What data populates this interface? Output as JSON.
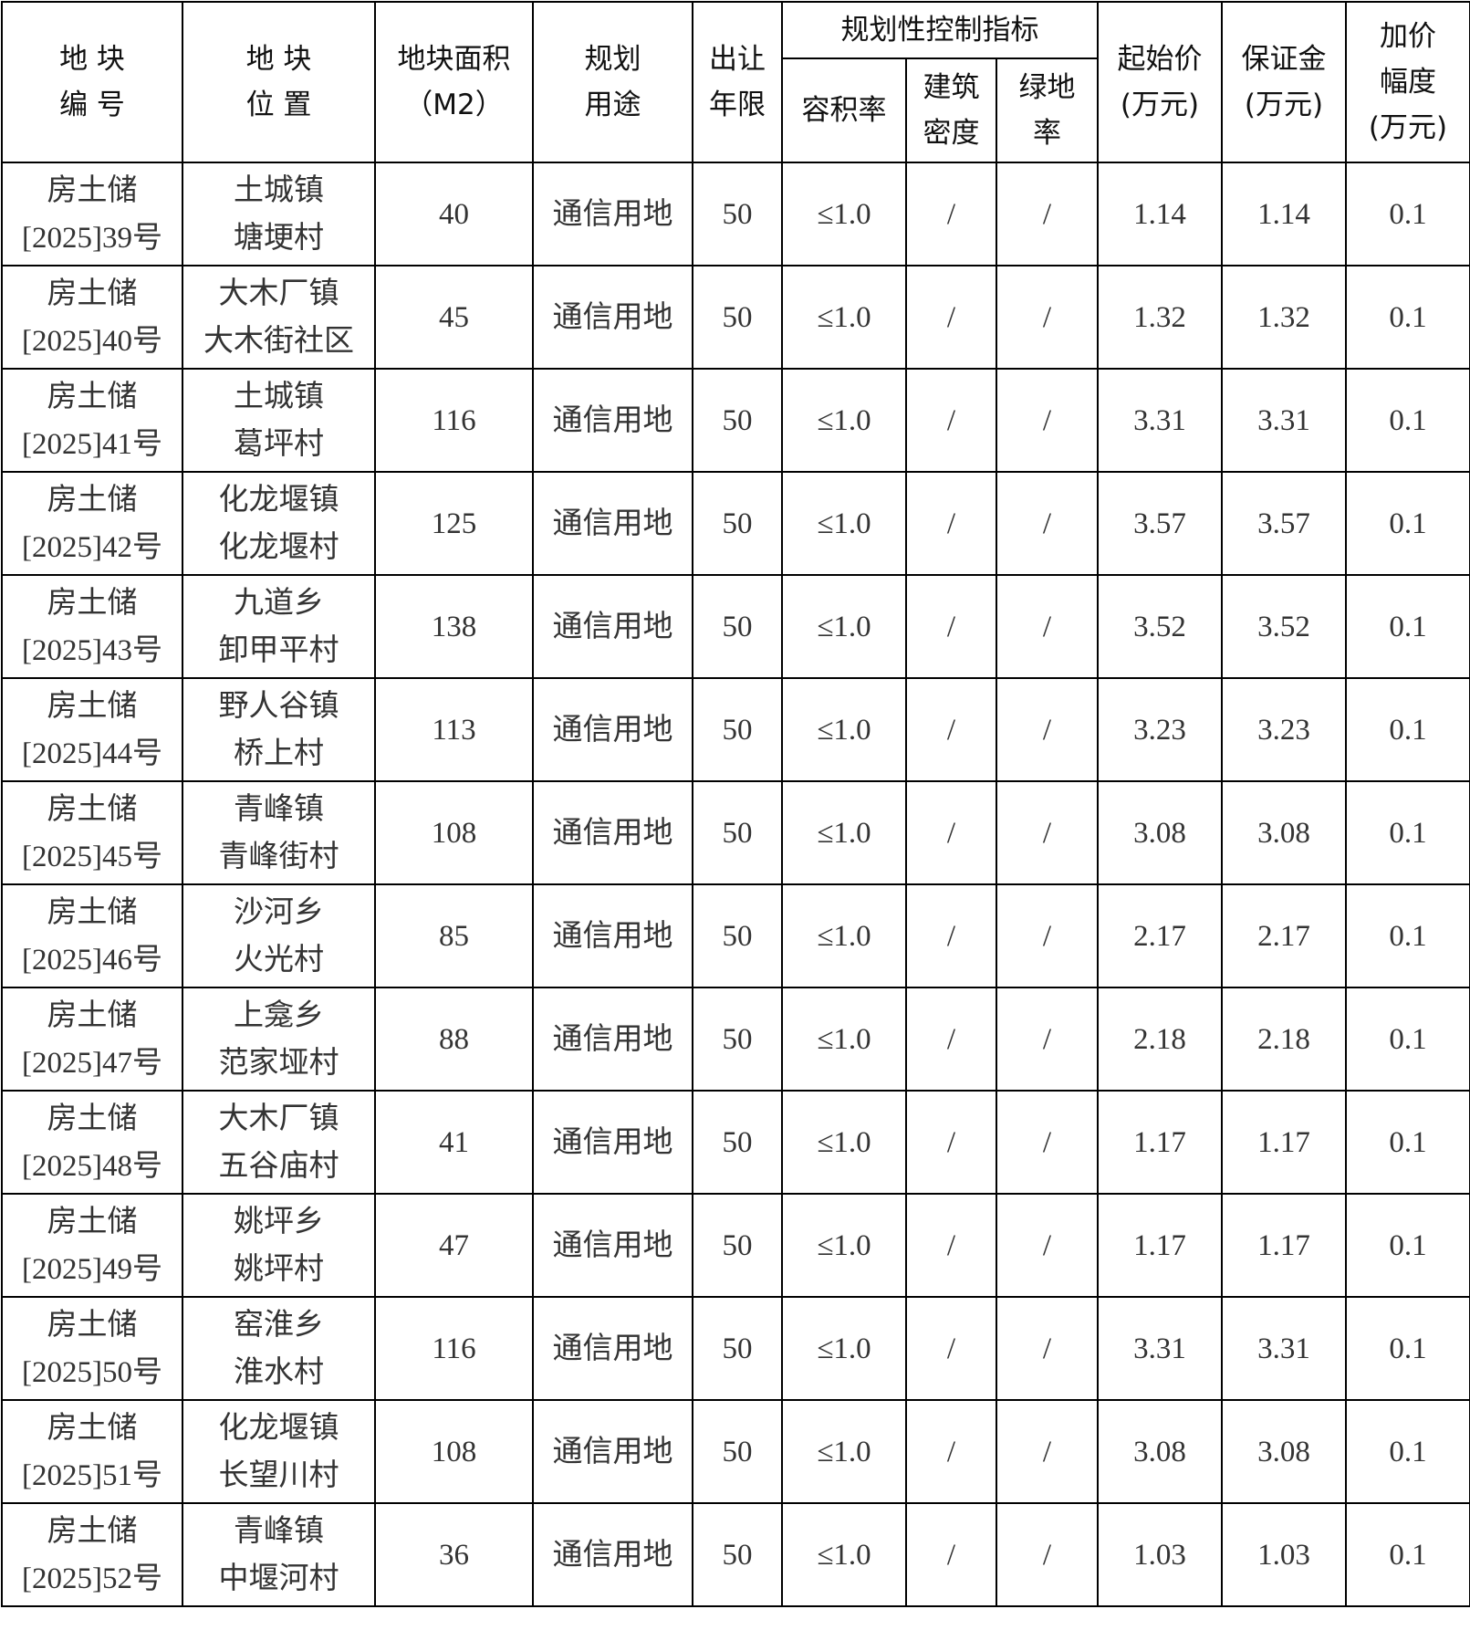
{
  "headers": {
    "plot_no": [
      "地 块",
      "编 号"
    ],
    "location": [
      "地 块",
      "位 置"
    ],
    "area": [
      "地块面积",
      "（M2）"
    ],
    "use": [
      "规划",
      "用途"
    ],
    "term": [
      "出让",
      "年限"
    ],
    "control_group": "规划性控制指标",
    "far": "容积率",
    "density": [
      "建筑",
      "密度"
    ],
    "green": [
      "绿地",
      "率"
    ],
    "start_price": [
      "起始价",
      "(万元)"
    ],
    "deposit": [
      "保证金",
      "(万元)"
    ],
    "increment": [
      "加价",
      "幅度",
      "(万元)"
    ]
  },
  "rows": [
    {
      "no": [
        "房土储",
        "[2025]39号"
      ],
      "loc": [
        "土城镇",
        "塘埂村"
      ],
      "area": "40",
      "use": "通信用地",
      "term": "50",
      "far": "≤1.0",
      "density": "/",
      "green": "/",
      "price": "1.14",
      "deposit": "1.14",
      "inc": "0.1"
    },
    {
      "no": [
        "房土储",
        "[2025]40号"
      ],
      "loc": [
        "大木厂镇",
        "大木街社区"
      ],
      "area": "45",
      "use": "通信用地",
      "term": "50",
      "far": "≤1.0",
      "density": "/",
      "green": "/",
      "price": "1.32",
      "deposit": "1.32",
      "inc": "0.1"
    },
    {
      "no": [
        "房土储",
        "[2025]41号"
      ],
      "loc": [
        "土城镇",
        "葛坪村"
      ],
      "area": "116",
      "use": "通信用地",
      "term": "50",
      "far": "≤1.0",
      "density": "/",
      "green": "/",
      "price": "3.31",
      "deposit": "3.31",
      "inc": "0.1"
    },
    {
      "no": [
        "房土储",
        "[2025]42号"
      ],
      "loc": [
        "化龙堰镇",
        "化龙堰村"
      ],
      "area": "125",
      "use": "通信用地",
      "term": "50",
      "far": "≤1.0",
      "density": "/",
      "green": "/",
      "price": "3.57",
      "deposit": "3.57",
      "inc": "0.1"
    },
    {
      "no": [
        "房土储",
        "[2025]43号"
      ],
      "loc": [
        "九道乡",
        "卸甲平村"
      ],
      "area": "138",
      "use": "通信用地",
      "term": "50",
      "far": "≤1.0",
      "density": "/",
      "green": "/",
      "price": "3.52",
      "deposit": "3.52",
      "inc": "0.1"
    },
    {
      "no": [
        "房土储",
        "[2025]44号"
      ],
      "loc": [
        "野人谷镇",
        "桥上村"
      ],
      "area": "113",
      "use": "通信用地",
      "term": "50",
      "far": "≤1.0",
      "density": "/",
      "green": "/",
      "price": "3.23",
      "deposit": "3.23",
      "inc": "0.1"
    },
    {
      "no": [
        "房土储",
        "[2025]45号"
      ],
      "loc": [
        "青峰镇",
        "青峰街村"
      ],
      "area": "108",
      "use": "通信用地",
      "term": "50",
      "far": "≤1.0",
      "density": "/",
      "green": "/",
      "price": "3.08",
      "deposit": "3.08",
      "inc": "0.1"
    },
    {
      "no": [
        "房土储",
        "[2025]46号"
      ],
      "loc": [
        "沙河乡",
        "火光村"
      ],
      "area": "85",
      "use": "通信用地",
      "term": "50",
      "far": "≤1.0",
      "density": "/",
      "green": "/",
      "price": "2.17",
      "deposit": "2.17",
      "inc": "0.1"
    },
    {
      "no": [
        "房土储",
        "[2025]47号"
      ],
      "loc": [
        "上龛乡",
        "范家垭村"
      ],
      "area": "88",
      "use": "通信用地",
      "term": "50",
      "far": "≤1.0",
      "density": "/",
      "green": "/",
      "price": "2.18",
      "deposit": "2.18",
      "inc": "0.1"
    },
    {
      "no": [
        "房土储",
        "[2025]48号"
      ],
      "loc": [
        "大木厂镇",
        "五谷庙村"
      ],
      "area": "41",
      "use": "通信用地",
      "term": "50",
      "far": "≤1.0",
      "density": "/",
      "green": "/",
      "price": "1.17",
      "deposit": "1.17",
      "inc": "0.1"
    },
    {
      "no": [
        "房土储",
        "[2025]49号"
      ],
      "loc": [
        "姚坪乡",
        "姚坪村"
      ],
      "area": "47",
      "use": "通信用地",
      "term": "50",
      "far": "≤1.0",
      "density": "/",
      "green": "/",
      "price": "1.17",
      "deposit": "1.17",
      "inc": "0.1"
    },
    {
      "no": [
        "房土储",
        "[2025]50号"
      ],
      "loc": [
        "窑淮乡",
        "淮水村"
      ],
      "area": "116",
      "use": "通信用地",
      "term": "50",
      "far": "≤1.0",
      "density": "/",
      "green": "/",
      "price": "3.31",
      "deposit": "3.31",
      "inc": "0.1"
    },
    {
      "no": [
        "房土储",
        "[2025]51号"
      ],
      "loc": [
        "化龙堰镇",
        "长望川村"
      ],
      "area": "108",
      "use": "通信用地",
      "term": "50",
      "far": "≤1.0",
      "density": "/",
      "green": "/",
      "price": "3.08",
      "deposit": "3.08",
      "inc": "0.1"
    },
    {
      "no": [
        "房土储",
        "[2025]52号"
      ],
      "loc": [
        "青峰镇",
        "中堰河村"
      ],
      "area": "36",
      "use": "通信用地",
      "term": "50",
      "far": "≤1.0",
      "density": "/",
      "green": "/",
      "price": "1.03",
      "deposit": "1.03",
      "inc": "0.1"
    }
  ]
}
